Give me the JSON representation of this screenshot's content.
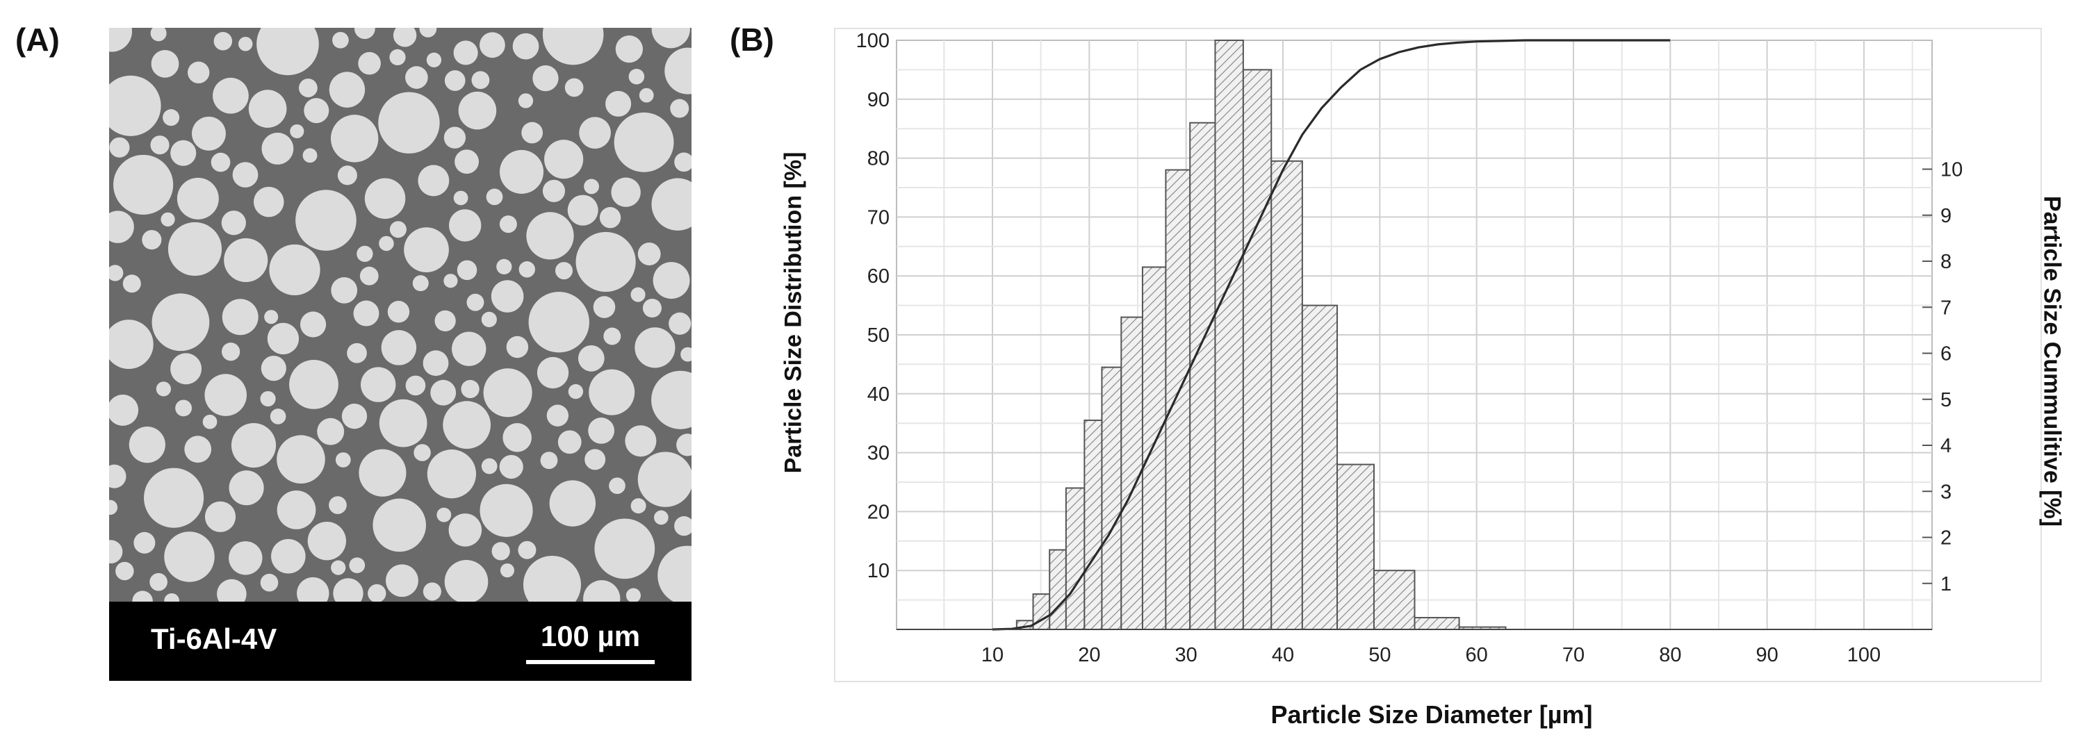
{
  "panels": {
    "a_label": "(A)",
    "b_label": "(B)"
  },
  "micrograph": {
    "alloy_label": "Ti-6Al-4V",
    "scale_bar_label": "100 µm",
    "colors": {
      "background": "#6a6a6a",
      "particle": "#dcdcdc",
      "info_bar": "#000000"
    }
  },
  "chart_data": {
    "type": "bar",
    "title": "",
    "xlabel": "Particle Size Diameter [µm]",
    "ylabel": "Particle Size Distribution [%]",
    "ylabel_right": "Particle Size Cummulitive [%]",
    "xlim": [
      0,
      110
    ],
    "ylim": [
      0,
      100
    ],
    "y2lim": [
      0,
      12.8
    ],
    "x_ticks": [
      10,
      20,
      30,
      40,
      50,
      60,
      70,
      80,
      90,
      100
    ],
    "y_ticks": [
      10,
      20,
      30,
      40,
      50,
      60,
      70,
      80,
      90,
      100
    ],
    "y2_ticks": [
      1,
      2,
      3,
      4,
      5,
      6,
      7,
      8,
      9,
      10
    ],
    "grid": true,
    "bins": [
      {
        "x0": 12.5,
        "x1": 14.2,
        "value": 1.5
      },
      {
        "x0": 14.2,
        "x1": 15.9,
        "value": 6
      },
      {
        "x0": 15.9,
        "x1": 17.6,
        "value": 13.5
      },
      {
        "x0": 17.6,
        "x1": 19.5,
        "value": 24
      },
      {
        "x0": 19.5,
        "x1": 21.3,
        "value": 35.5
      },
      {
        "x0": 21.3,
        "x1": 23.3,
        "value": 44.5
      },
      {
        "x0": 23.3,
        "x1": 25.5,
        "value": 53
      },
      {
        "x0": 25.5,
        "x1": 27.9,
        "value": 61.5
      },
      {
        "x0": 27.9,
        "x1": 30.4,
        "value": 78
      },
      {
        "x0": 30.4,
        "x1": 33.0,
        "value": 86
      },
      {
        "x0": 33.0,
        "x1": 35.9,
        "value": 100
      },
      {
        "x0": 35.9,
        "x1": 38.8,
        "value": 95
      },
      {
        "x0": 38.8,
        "x1": 42.0,
        "value": 79.5
      },
      {
        "x0": 42.0,
        "x1": 45.6,
        "value": 55
      },
      {
        "x0": 45.6,
        "x1": 49.4,
        "value": 28
      },
      {
        "x0": 49.4,
        "x1": 53.6,
        "value": 10
      },
      {
        "x0": 53.6,
        "x1": 58.2,
        "value": 2
      },
      {
        "x0": 58.2,
        "x1": 63.0,
        "value": 0.4
      }
    ],
    "cumulative_x": [
      0,
      10,
      12,
      14,
      16,
      18,
      20,
      22,
      24,
      26,
      28,
      30,
      32,
      34,
      36,
      38,
      40,
      42,
      44,
      46,
      48,
      50,
      52,
      54,
      56,
      58,
      60,
      65,
      70,
      80
    ],
    "cumulative_y": [
      0,
      0,
      0.1,
      0.6,
      2.5,
      6,
      11,
      16,
      22,
      29,
      36,
      43,
      50,
      57,
      64,
      71,
      78,
      84,
      88.5,
      92,
      95,
      96.8,
      98,
      98.8,
      99.3,
      99.6,
      99.8,
      100,
      100,
      100
    ]
  }
}
